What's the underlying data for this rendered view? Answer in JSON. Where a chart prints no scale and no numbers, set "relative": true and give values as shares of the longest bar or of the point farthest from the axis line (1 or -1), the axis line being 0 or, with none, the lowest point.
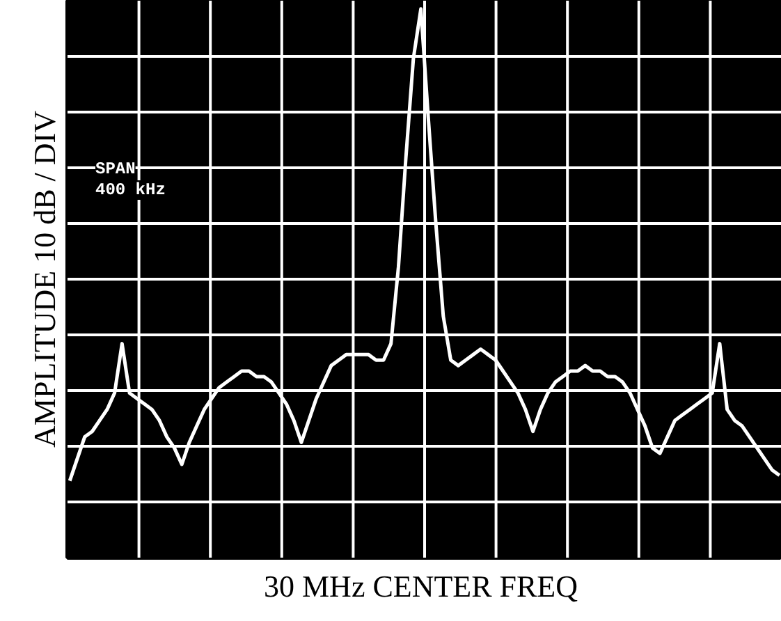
{
  "chart_data": {
    "type": "line",
    "relative": true,
    "xlabel": "30 MHz  CENTER FREQ",
    "ylabel": "AMPLITUDE 10 dB / DIV",
    "annotations": [
      "SPAN",
      "400 kHz"
    ],
    "grid": true,
    "categories": [
      null,
      null,
      null,
      null,
      null,
      null,
      null,
      null,
      null,
      null,
      null,
      null,
      null,
      null,
      null,
      null,
      null,
      null,
      null,
      null,
      null,
      null,
      null,
      null,
      null,
      null,
      null,
      null,
      null,
      null,
      null,
      null,
      null,
      null,
      null,
      null,
      null,
      null,
      null,
      null,
      null,
      null,
      null,
      null,
      null,
      null,
      null,
      null,
      null,
      null,
      null,
      null,
      null,
      null,
      null,
      null,
      null,
      null,
      null,
      null,
      null,
      null,
      null,
      null,
      null,
      null,
      null,
      null,
      null,
      null,
      null,
      null,
      null,
      null,
      null,
      null,
      null,
      null,
      null,
      null,
      null,
      null,
      null,
      null,
      null,
      null,
      null,
      null,
      null,
      null,
      null,
      null,
      null,
      null,
      null,
      null
    ],
    "series": [
      {
        "color": "#ffffff",
        "values": [
          0.14,
          0.18,
          0.22,
          0.23,
          0.25,
          0.27,
          0.3,
          0.39,
          0.3,
          0.29,
          0.28,
          0.27,
          0.25,
          0.22,
          0.2,
          0.17,
          0.21,
          0.24,
          0.27,
          0.29,
          0.31,
          0.32,
          0.33,
          0.34,
          0.34,
          0.33,
          0.33,
          0.32,
          0.3,
          0.28,
          0.25,
          0.21,
          0.25,
          0.29,
          0.32,
          0.35,
          0.36,
          0.37,
          0.37,
          0.37,
          0.37,
          0.36,
          0.36,
          0.39,
          0.53,
          0.73,
          0.91,
          1,
          0.8,
          0.61,
          0.44,
          0.36,
          0.35,
          0.36,
          0.37,
          0.38,
          0.37,
          0.36,
          0.34,
          0.32,
          0.3,
          0.27,
          0.23,
          0.27,
          0.3,
          0.32,
          0.33,
          0.34,
          0.34,
          0.35,
          0.34,
          0.34,
          0.33,
          0.33,
          0.32,
          0.3,
          0.27,
          0.24,
          0.2,
          0.19,
          0.22,
          0.25,
          0.26,
          0.27,
          0.28,
          0.29,
          0.3,
          0.39,
          0.27,
          0.25,
          0.24,
          0.22,
          0.2,
          0.18,
          0.16,
          0.15
        ]
      }
    ]
  }
}
